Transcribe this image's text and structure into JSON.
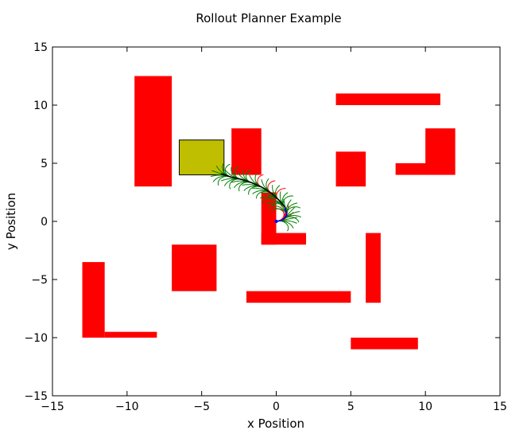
{
  "chart_data": {
    "type": "scatter",
    "title": "Rollout Planner Example",
    "xlabel": "x Position",
    "ylabel": "y Position",
    "xlim": [
      -15,
      15
    ],
    "ylim": [
      -15,
      15
    ],
    "xticks": [
      -15,
      -10,
      -5,
      0,
      5,
      10,
      15
    ],
    "yticks": [
      -15,
      -10,
      -5,
      0,
      5,
      10,
      15
    ],
    "tick_labels": [
      "−15",
      "−10",
      "−5",
      "0",
      "5",
      "10",
      "15"
    ],
    "grid": false,
    "colors": {
      "obstacle": "#ff0000",
      "goal": "#bfbf00",
      "goal_edge": "#000000",
      "rollout": "#008000",
      "collision_rollout": "#ff0000",
      "path": "#000000",
      "path_end": "#0000ff"
    },
    "obstacles": [
      {
        "x0": -9.5,
        "x1": -7.0,
        "y0": 3.0,
        "y1": 12.5
      },
      {
        "x0": -3.0,
        "x1": -1.0,
        "y0": 4.0,
        "y1": 8.0
      },
      {
        "x0": -1.0,
        "x1": 0.0,
        "y0": -2.0,
        "y1": 2.5
      },
      {
        "x0": -1.0,
        "x1": 2.0,
        "y0": -2.0,
        "y1": -1.0
      },
      {
        "x0": 4.0,
        "x1": 11.0,
        "y0": 10.0,
        "y1": 11.0
      },
      {
        "x0": 4.0,
        "x1": 6.0,
        "y0": 3.0,
        "y1": 6.0
      },
      {
        "x0": 8.0,
        "x1": 12.0,
        "y0": 4.0,
        "y1": 5.0
      },
      {
        "x0": 10.0,
        "x1": 12.0,
        "y0": 5.0,
        "y1": 8.0
      },
      {
        "x0": 6.0,
        "x1": 7.0,
        "y0": -7.0,
        "y1": -1.0
      },
      {
        "x0": -7.0,
        "x1": -4.0,
        "y0": -6.0,
        "y1": -2.0
      },
      {
        "x0": -2.0,
        "x1": 5.0,
        "y0": -7.0,
        "y1": -6.0
      },
      {
        "x0": 5.0,
        "x1": 9.5,
        "y0": -11.0,
        "y1": -10.0
      },
      {
        "x0": -13.0,
        "x1": -11.5,
        "y0": -10.0,
        "y1": -3.5
      },
      {
        "x0": -11.5,
        "x1": -8.0,
        "y0": -10.0,
        "y1": -9.5
      }
    ],
    "goal": {
      "x0": -6.5,
      "x1": -3.5,
      "y0": 4.0,
      "y1": 7.0
    },
    "path": {
      "x": [
        0.0,
        0.4,
        0.7,
        0.6,
        0.2,
        -0.3,
        -0.9,
        -1.6,
        -2.3,
        -3.0,
        -3.7
      ],
      "y": [
        0.0,
        0.1,
        0.5,
        1.2,
        1.8,
        2.4,
        2.9,
        3.3,
        3.6,
        3.8,
        4.1
      ]
    }
  }
}
